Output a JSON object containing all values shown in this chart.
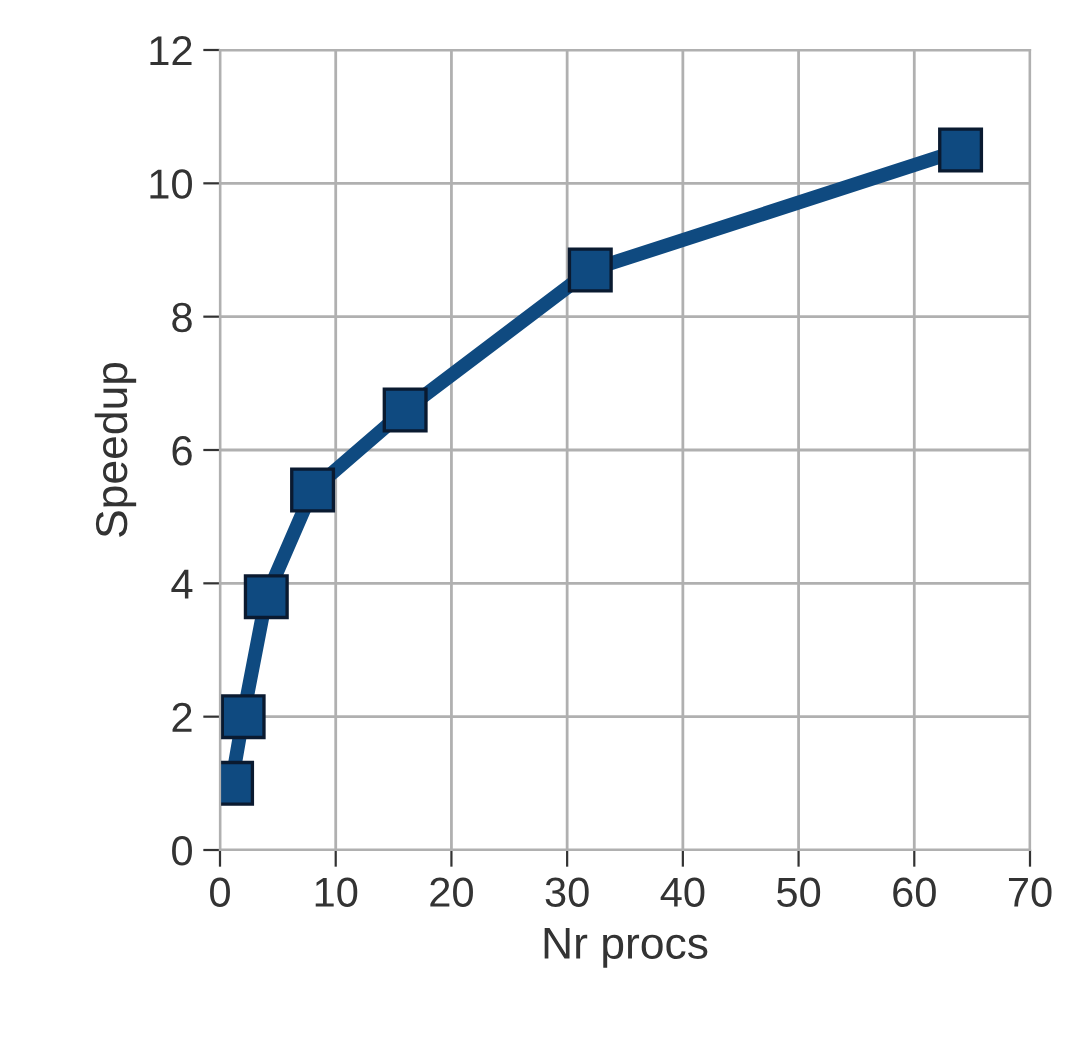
{
  "chart_data": {
    "type": "line",
    "xlabel": "Nr procs",
    "ylabel": "Speedup",
    "x": [
      1,
      2,
      4,
      8,
      16,
      32,
      64
    ],
    "series": [
      {
        "color": "#0f4a80",
        "values": [
          1.0,
          2.0,
          3.8,
          5.4,
          6.6,
          8.7,
          10.5
        ]
      }
    ],
    "xlim": [
      0,
      70
    ],
    "xticks": [
      0,
      10,
      20,
      30,
      40,
      50,
      60,
      70
    ],
    "ylim": [
      0,
      12
    ],
    "yticks": [
      0,
      2,
      4,
      6,
      8,
      10,
      12
    ],
    "grid": true,
    "marker": "square",
    "line_style": "solid",
    "legend": false
  }
}
